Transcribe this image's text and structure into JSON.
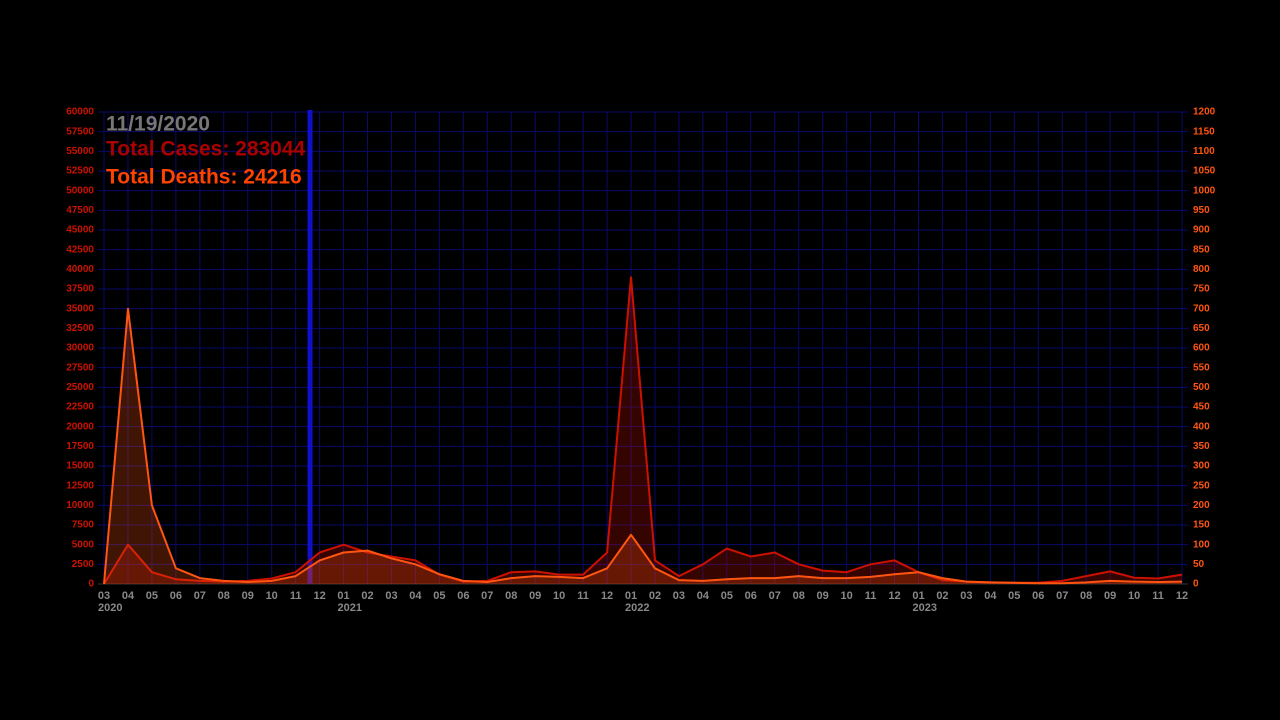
{
  "chart_data": {
    "type": "line",
    "annotations": {
      "date": "11/19/2020",
      "cases": "Total Cases: 283044",
      "deaths": "Total Deaths: 24216"
    },
    "x": [
      "2020-03",
      "2020-04",
      "2020-05",
      "2020-06",
      "2020-07",
      "2020-08",
      "2020-09",
      "2020-10",
      "2020-11",
      "2020-12",
      "2021-01",
      "2021-02",
      "2021-03",
      "2021-04",
      "2021-05",
      "2021-06",
      "2021-07",
      "2021-08",
      "2021-09",
      "2021-10",
      "2021-11",
      "2021-12",
      "2022-01",
      "2022-02",
      "2022-03",
      "2022-04",
      "2022-05",
      "2022-06",
      "2022-07",
      "2022-08",
      "2022-09",
      "2022-10",
      "2022-11",
      "2022-12",
      "2023-01",
      "2023-02",
      "2023-03",
      "2023-04",
      "2023-05",
      "2023-06",
      "2023-07",
      "2023-08",
      "2023-09",
      "2023-10",
      "2023-11",
      "2023-12"
    ],
    "series": [
      {
        "name": "Cases",
        "color": "#cc1100",
        "axis": "y",
        "values": [
          0,
          5000,
          1500,
          600,
          400,
          300,
          400,
          700,
          1500,
          4000,
          5000,
          4000,
          3500,
          3000,
          1200,
          300,
          400,
          1500,
          1600,
          1200,
          1200,
          4000,
          39000,
          3000,
          1000,
          2500,
          4500,
          3500,
          4000,
          2500,
          1700,
          1500,
          2500,
          3000,
          1500,
          500,
          300,
          200,
          150,
          150,
          400,
          1000,
          1600,
          800,
          700,
          1200
        ]
      },
      {
        "name": "Deaths",
        "color": "#ff5511",
        "axis": "y2",
        "values": [
          0,
          700,
          200,
          40,
          15,
          8,
          5,
          8,
          20,
          60,
          80,
          85,
          65,
          50,
          25,
          8,
          5,
          15,
          20,
          18,
          15,
          40,
          125,
          40,
          10,
          8,
          12,
          15,
          15,
          20,
          15,
          15,
          18,
          25,
          30,
          15,
          6,
          4,
          3,
          2,
          2,
          4,
          8,
          6,
          5,
          6
        ]
      }
    ],
    "ylim": [
      0,
      60000
    ],
    "yticks": [
      0,
      2500,
      5000,
      7500,
      10000,
      12500,
      15000,
      17500,
      20000,
      22500,
      25000,
      27500,
      30000,
      32500,
      35000,
      37500,
      40000,
      42500,
      45000,
      47500,
      50000,
      52500,
      55000,
      57500,
      60000
    ],
    "y2lim": [
      0,
      1200
    ],
    "y2ticks": [
      0,
      50,
      100,
      150,
      200,
      250,
      300,
      350,
      400,
      450,
      500,
      550,
      600,
      650,
      700,
      750,
      800,
      850,
      900,
      950,
      1000,
      1050,
      1100,
      1150,
      1200
    ],
    "xticks": [
      {
        "value": "2020-03",
        "label": "03"
      },
      {
        "value": "2020-04",
        "label": "04"
      },
      {
        "value": "2020-05",
        "label": "05"
      },
      {
        "value": "2020-06",
        "label": "06"
      },
      {
        "value": "2020-07",
        "label": "07"
      },
      {
        "value": "2020-08",
        "label": "08"
      },
      {
        "value": "2020-09",
        "label": "09"
      },
      {
        "value": "2020-10",
        "label": "10"
      },
      {
        "value": "2020-11",
        "label": "11"
      },
      {
        "value": "2020-12",
        "label": "12"
      },
      {
        "value": "2021-01",
        "label": "01"
      },
      {
        "value": "2021-02",
        "label": "02"
      },
      {
        "value": "2021-03",
        "label": "03"
      },
      {
        "value": "2021-04",
        "label": "04"
      },
      {
        "value": "2021-05",
        "label": "05"
      },
      {
        "value": "2021-06",
        "label": "06"
      },
      {
        "value": "2021-07",
        "label": "07"
      },
      {
        "value": "2021-08",
        "label": "08"
      },
      {
        "value": "2021-09",
        "label": "09"
      },
      {
        "value": "2021-10",
        "label": "10"
      },
      {
        "value": "2021-11",
        "label": "11"
      },
      {
        "value": "2021-12",
        "label": "12"
      },
      {
        "value": "2022-01",
        "label": "01"
      },
      {
        "value": "2022-02",
        "label": "02"
      },
      {
        "value": "2022-03",
        "label": "03"
      },
      {
        "value": "2022-04",
        "label": "04"
      },
      {
        "value": "2022-05",
        "label": "05"
      },
      {
        "value": "2022-06",
        "label": "06"
      },
      {
        "value": "2022-07",
        "label": "07"
      },
      {
        "value": "2022-08",
        "label": "08"
      },
      {
        "value": "2022-09",
        "label": "09"
      },
      {
        "value": "2022-10",
        "label": "10"
      },
      {
        "value": "2022-11",
        "label": "11"
      },
      {
        "value": "2022-12",
        "label": "12"
      },
      {
        "value": "2023-01",
        "label": "01"
      },
      {
        "value": "2023-02",
        "label": "02"
      },
      {
        "value": "2023-03",
        "label": "03"
      },
      {
        "value": "2023-04",
        "label": "04"
      },
      {
        "value": "2023-05",
        "label": "05"
      },
      {
        "value": "2023-06",
        "label": "06"
      },
      {
        "value": "2023-07",
        "label": "07"
      },
      {
        "value": "2023-08",
        "label": "08"
      },
      {
        "value": "2023-09",
        "label": "09"
      },
      {
        "value": "2023-10",
        "label": "10"
      },
      {
        "value": "2023-11",
        "label": "11"
      },
      {
        "value": "2023-12",
        "label": "12"
      }
    ],
    "year_labels": [
      {
        "value": "2020-03",
        "label": "2020"
      },
      {
        "value": "2021-01",
        "label": "2021"
      },
      {
        "value": "2022-01",
        "label": "2022"
      },
      {
        "value": "2023-01",
        "label": "2023"
      }
    ],
    "grid": true
  }
}
